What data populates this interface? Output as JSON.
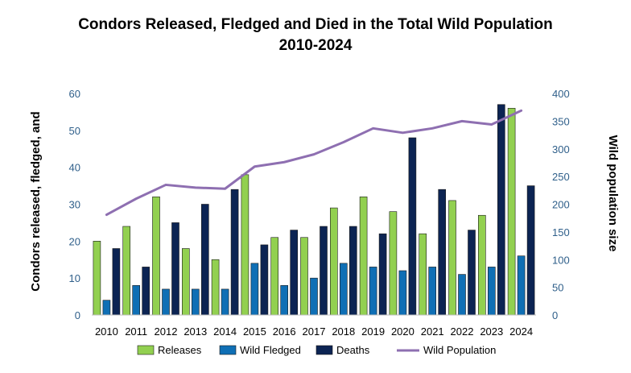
{
  "chart_data": {
    "type": "bar",
    "title": "Condors Released, Fledged and Died in the Total Wild Population",
    "subtitle": "2010-2024",
    "categories": [
      "2010",
      "2011",
      "2012",
      "2013",
      "2014",
      "2015",
      "2016",
      "2017",
      "2018",
      "2019",
      "2020",
      "2021",
      "2022",
      "2023",
      "2024"
    ],
    "ylabel": "Condors  released, fledged, and",
    "y2label": "Wild population size",
    "ylim": [
      0,
      60
    ],
    "y2lim": [
      0,
      400
    ],
    "yticks": [
      "0",
      "10",
      "20",
      "30",
      "40",
      "50",
      "60"
    ],
    "y2ticks": [
      "0",
      "50",
      "100",
      "150",
      "200",
      "250",
      "300",
      "350",
      "400"
    ],
    "series": [
      {
        "name": "Releases",
        "axis": "left",
        "type": "bar",
        "color": "#92d050",
        "values": [
          20,
          24,
          32,
          18,
          15,
          38,
          21,
          21,
          29,
          32,
          28,
          22,
          31,
          27,
          56
        ]
      },
      {
        "name": "Wild Fledged",
        "axis": "left",
        "type": "bar",
        "color": "#0f6fb5",
        "values": [
          4,
          8,
          7,
          7,
          7,
          14,
          8,
          10,
          14,
          13,
          12,
          13,
          11,
          13,
          16
        ]
      },
      {
        "name": "Deaths",
        "axis": "left",
        "type": "bar",
        "color": "#0c2453",
        "values": [
          18,
          13,
          25,
          30,
          34,
          19,
          23,
          24,
          24,
          22,
          48,
          34,
          23,
          57,
          35
        ]
      },
      {
        "name": "Wild Population",
        "axis": "right",
        "type": "line",
        "color": "#8e6fb1",
        "values": [
          181,
          210,
          235,
          230,
          228,
          268,
          276,
          290,
          312,
          337,
          329,
          337,
          350,
          344,
          369
        ]
      }
    ],
    "legend_position": "bottom",
    "grid": false
  }
}
